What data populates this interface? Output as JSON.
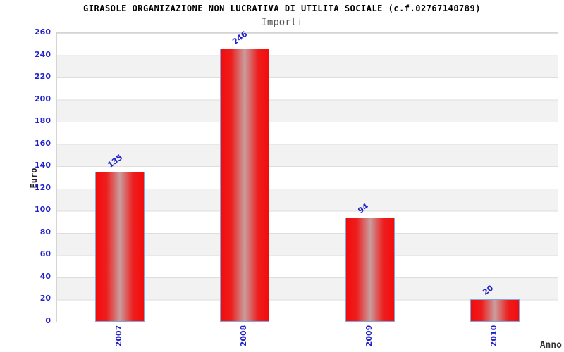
{
  "chart_data": {
    "type": "bar",
    "title": "GIRASOLE ORGANIZAZIONE NON LUCRATIVA DI UTILITA SOCIALE (c.f.02767140789)",
    "subtitle": "Importi",
    "xlabel": "Anno",
    "ylabel": "Euro",
    "categories": [
      "2007",
      "2008",
      "2009",
      "2010"
    ],
    "values": [
      135,
      246,
      94,
      20
    ],
    "ylim": [
      0,
      260
    ],
    "ytick_step": 20,
    "grid": "horizontal-bands",
    "legend_position": "none",
    "colors": {
      "bar_red": "#f30c0c",
      "bar_center_highlight": "#c99d9d",
      "bar_border": "#7fa8dc",
      "tick_label_blue": "#2222cc",
      "band_gray": "#f2f2f2",
      "gridline": "#dedede",
      "plot_border": "#d4d4d4",
      "title_color": "#000000",
      "subtitle_color": "#555555"
    }
  }
}
